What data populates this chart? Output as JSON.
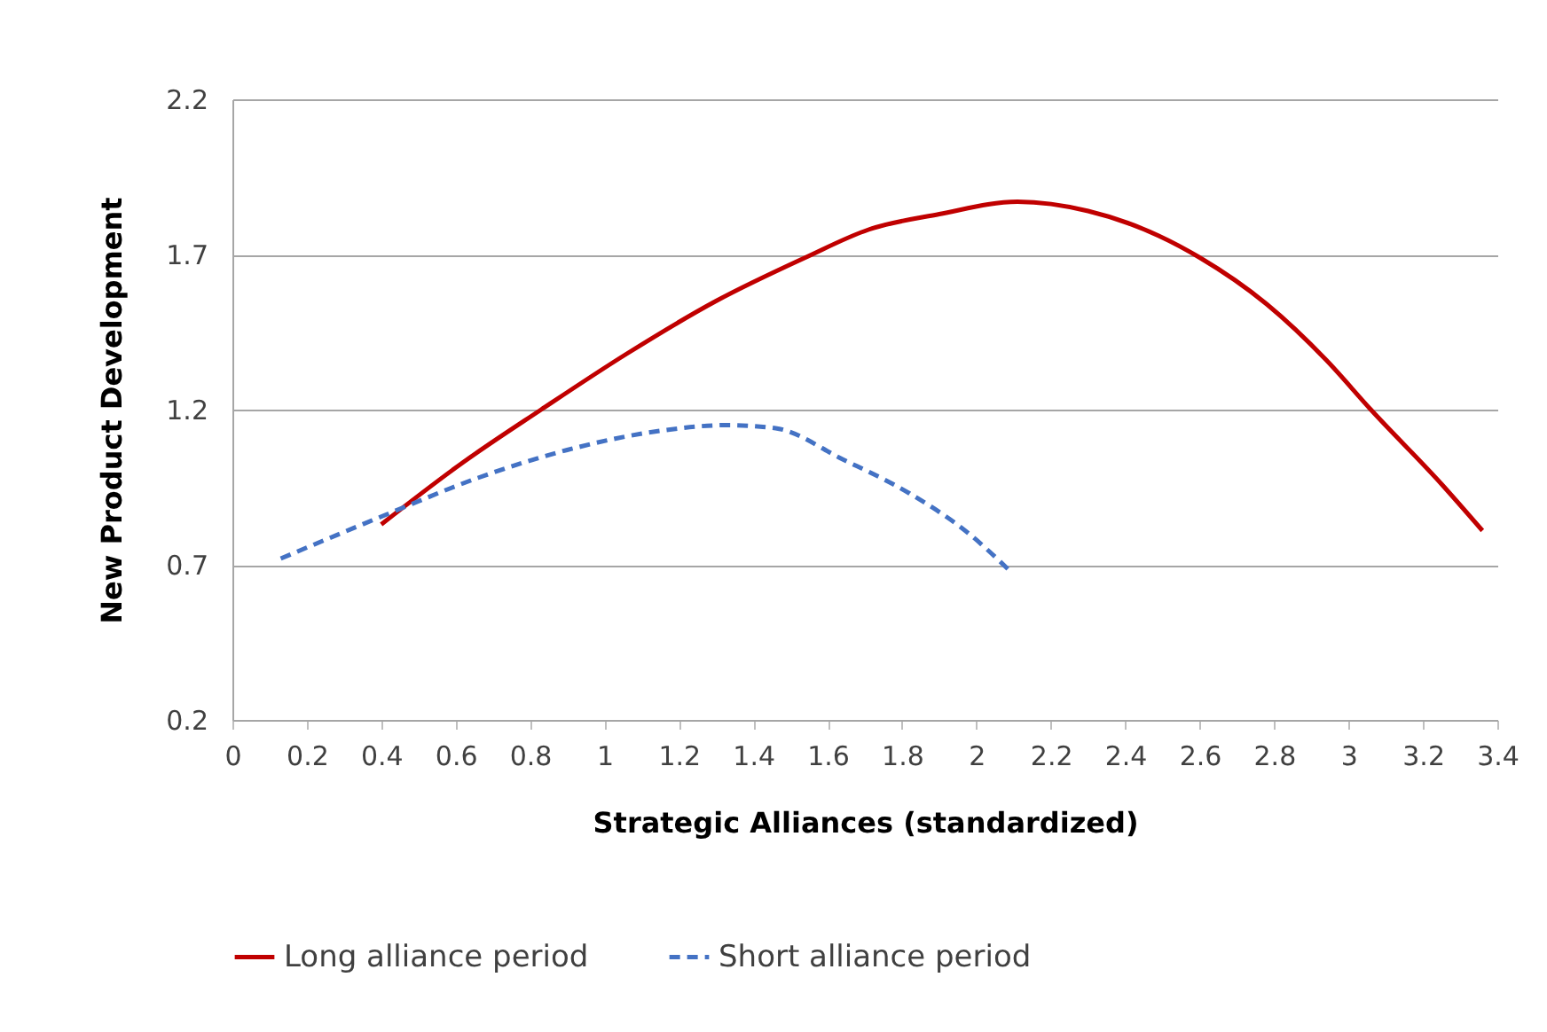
{
  "chart_data": {
    "type": "line",
    "xlabel": "Strategic Alliances (standardized)",
    "ylabel": "New Product Development",
    "xlim": [
      0,
      3.4
    ],
    "xticks": [
      0,
      0.2,
      0.4,
      0.6,
      0.8,
      1,
      1.2,
      1.4,
      1.6,
      1.8,
      2,
      2.2,
      2.4,
      2.6,
      2.8,
      3,
      3.2,
      3.4
    ],
    "ylim": [
      0.2,
      2.2
    ],
    "yticks": [
      0.2,
      0.7,
      1.2,
      1.7,
      2.2
    ],
    "grid": "y",
    "legend": "bottom",
    "series": [
      {
        "name": "Long alliance period",
        "color": "#c00000",
        "line_style": "solid",
        "x": [
          0.4,
          0.62,
          0.83,
          1.06,
          1.3,
          1.54,
          1.71,
          1.9,
          2.11,
          2.3,
          2.49,
          2.6,
          2.78,
          2.94,
          3.06,
          3.25,
          3.36
        ],
        "values": [
          0.83,
          1.03,
          1.2,
          1.38,
          1.55,
          1.69,
          1.78,
          1.83,
          1.87,
          1.84,
          1.76,
          1.69,
          1.54,
          1.36,
          1.2,
          0.96,
          0.81
        ]
      },
      {
        "name": "Short alliance period",
        "color": "#4472c4",
        "line_style": "dashed",
        "x": [
          0.13,
          0.41,
          0.66,
          0.9,
          1.14,
          1.33,
          1.46,
          1.64,
          1.82,
          1.98,
          2.09
        ],
        "values": [
          0.72,
          0.86,
          0.98,
          1.07,
          1.13,
          1.15,
          1.14,
          1.04,
          0.93,
          0.8,
          0.68
        ]
      }
    ]
  }
}
